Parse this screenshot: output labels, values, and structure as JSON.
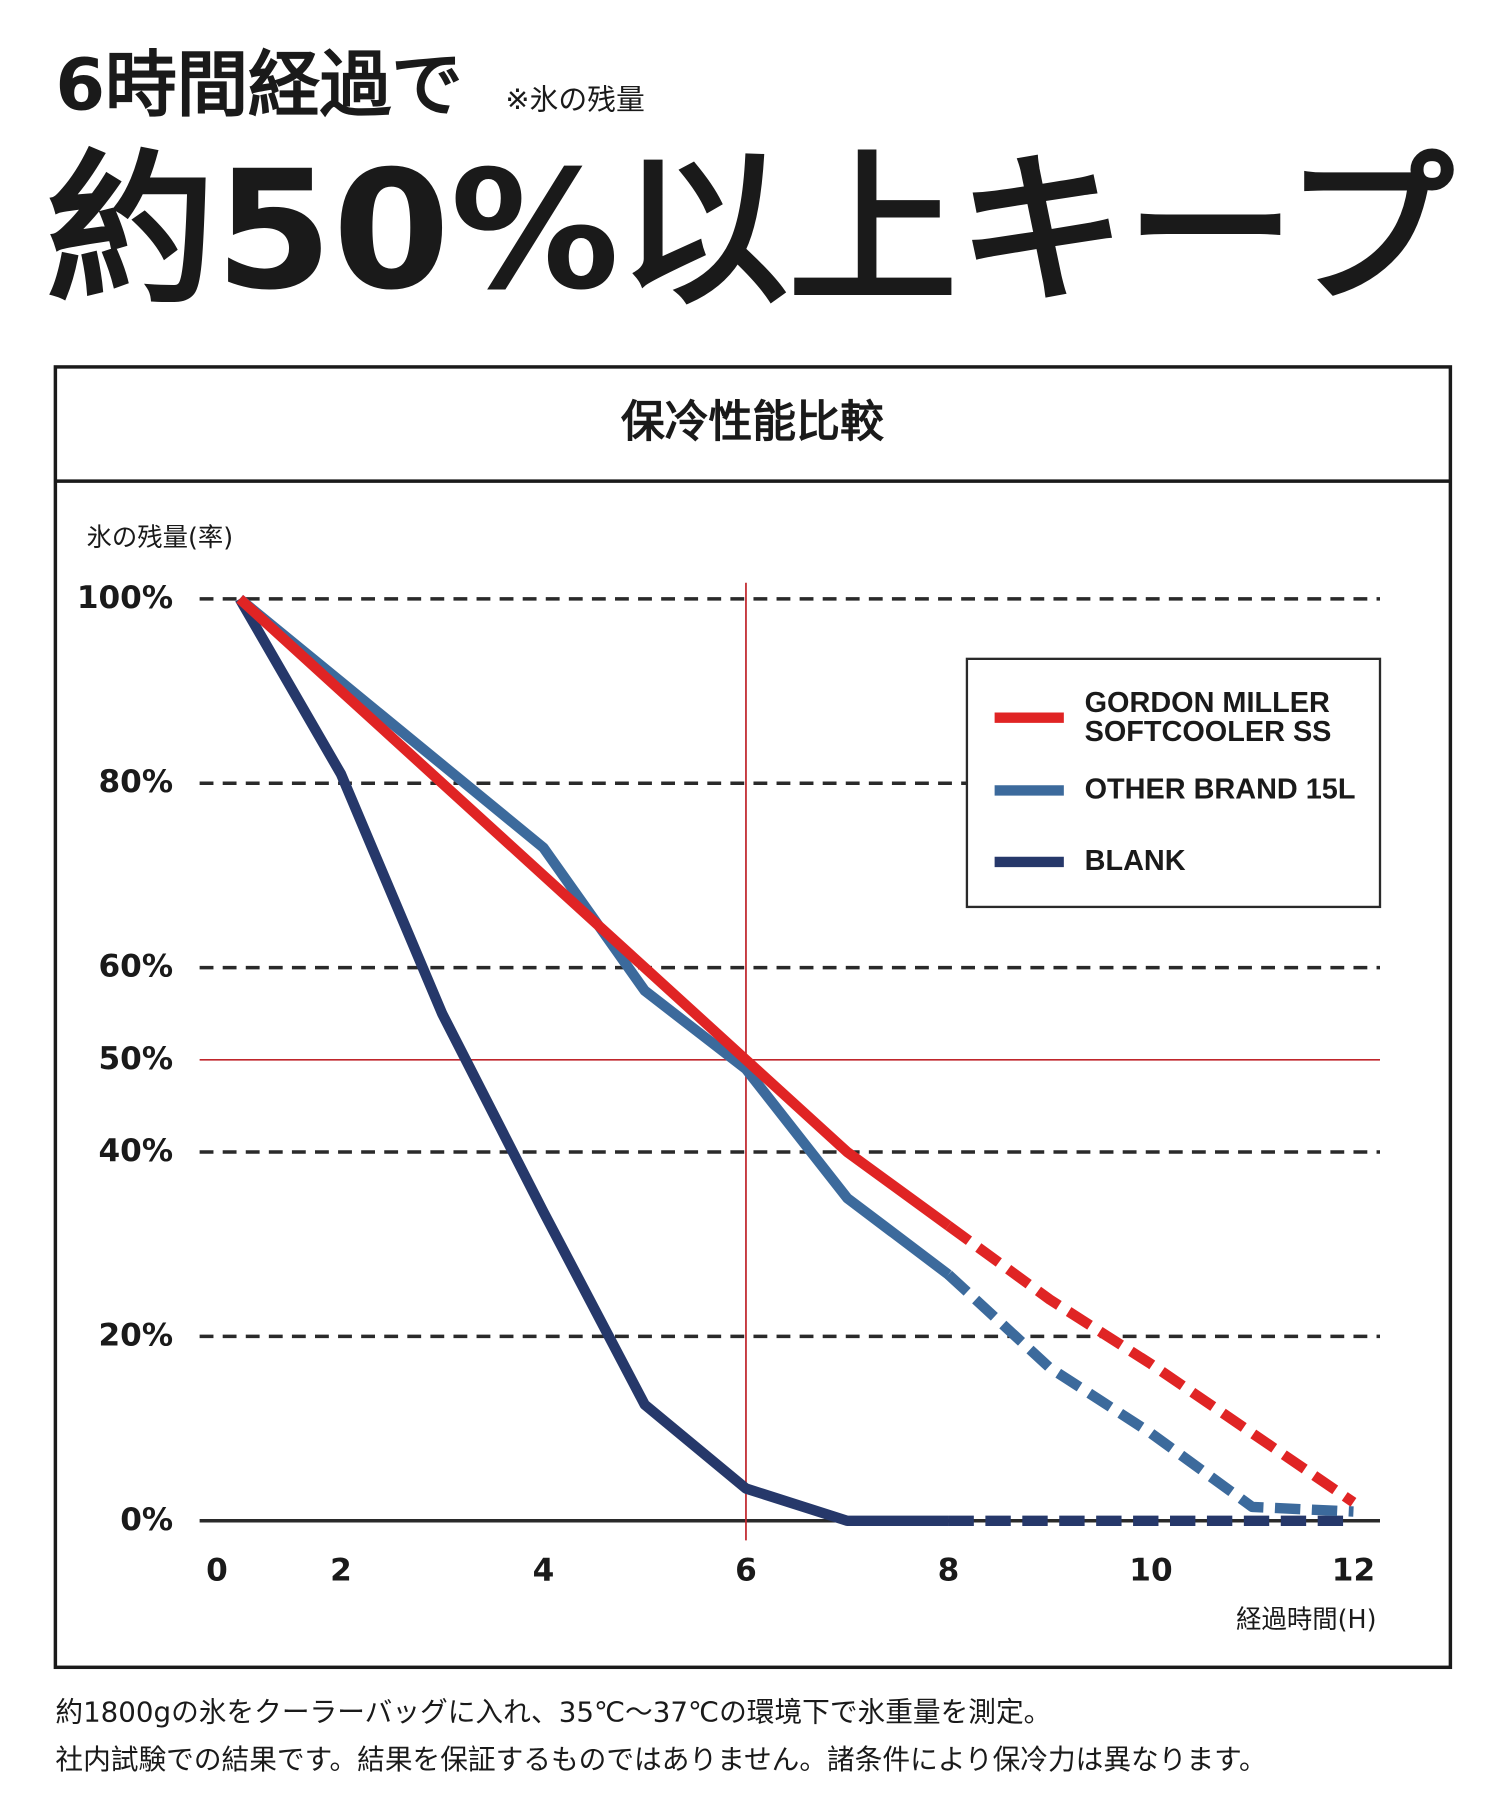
{
  "header": {
    "title": "6時間経過で",
    "note": "※氷の残量",
    "headline": "約50%以上キープ"
  },
  "chart_data": {
    "type": "line",
    "title": "保冷性能比較",
    "ylabel": "氷の残量(率)",
    "xlabel": "経過時間(H)",
    "xlim": [
      0,
      12
    ],
    "ylim": [
      0,
      100
    ],
    "xticks": [
      0,
      2,
      4,
      6,
      8,
      10,
      12
    ],
    "yticks": [
      {
        "value": 0,
        "label": "0%"
      },
      {
        "value": 20,
        "label": "20%"
      },
      {
        "value": 40,
        "label": "40%"
      },
      {
        "value": 50,
        "label": "50%"
      },
      {
        "value": 60,
        "label": "60%"
      },
      {
        "value": 80,
        "label": "80%"
      },
      {
        "value": 100,
        "label": "100%"
      }
    ],
    "grid": true,
    "dashed_after": 8,
    "reference_lines": {
      "x": 6,
      "y": 50,
      "color": "#c0262c"
    },
    "legend": "upper right",
    "x": [
      1,
      2,
      3,
      4,
      5,
      6,
      7,
      8,
      9,
      10,
      11,
      12
    ],
    "series": [
      {
        "name": "GORDON MILLER\nSOFTCOOLER SS",
        "color": "#e02424",
        "values": [
          100,
          90,
          80,
          70,
          60,
          50,
          40,
          32,
          24,
          17,
          9.5,
          2
        ]
      },
      {
        "name": "OTHER BRAND 15L",
        "color": "#3c6a9c",
        "values": [
          100,
          91,
          82,
          73,
          57.5,
          49,
          35,
          26.7,
          16.6,
          9.5,
          1.5,
          1
        ]
      },
      {
        "name": "BLANK",
        "color": "#26386a",
        "values": [
          100,
          81,
          55,
          33.5,
          12.6,
          3.5,
          0,
          0,
          0,
          0,
          0,
          0
        ]
      }
    ]
  },
  "notes": [
    "約1800gの氷をクーラーバッグに入れ、35℃〜37℃の環境下で氷重量を測定。",
    "社内試験での結果です。結果を保証するものではありません。諸条件により保冷力は異なります。"
  ]
}
